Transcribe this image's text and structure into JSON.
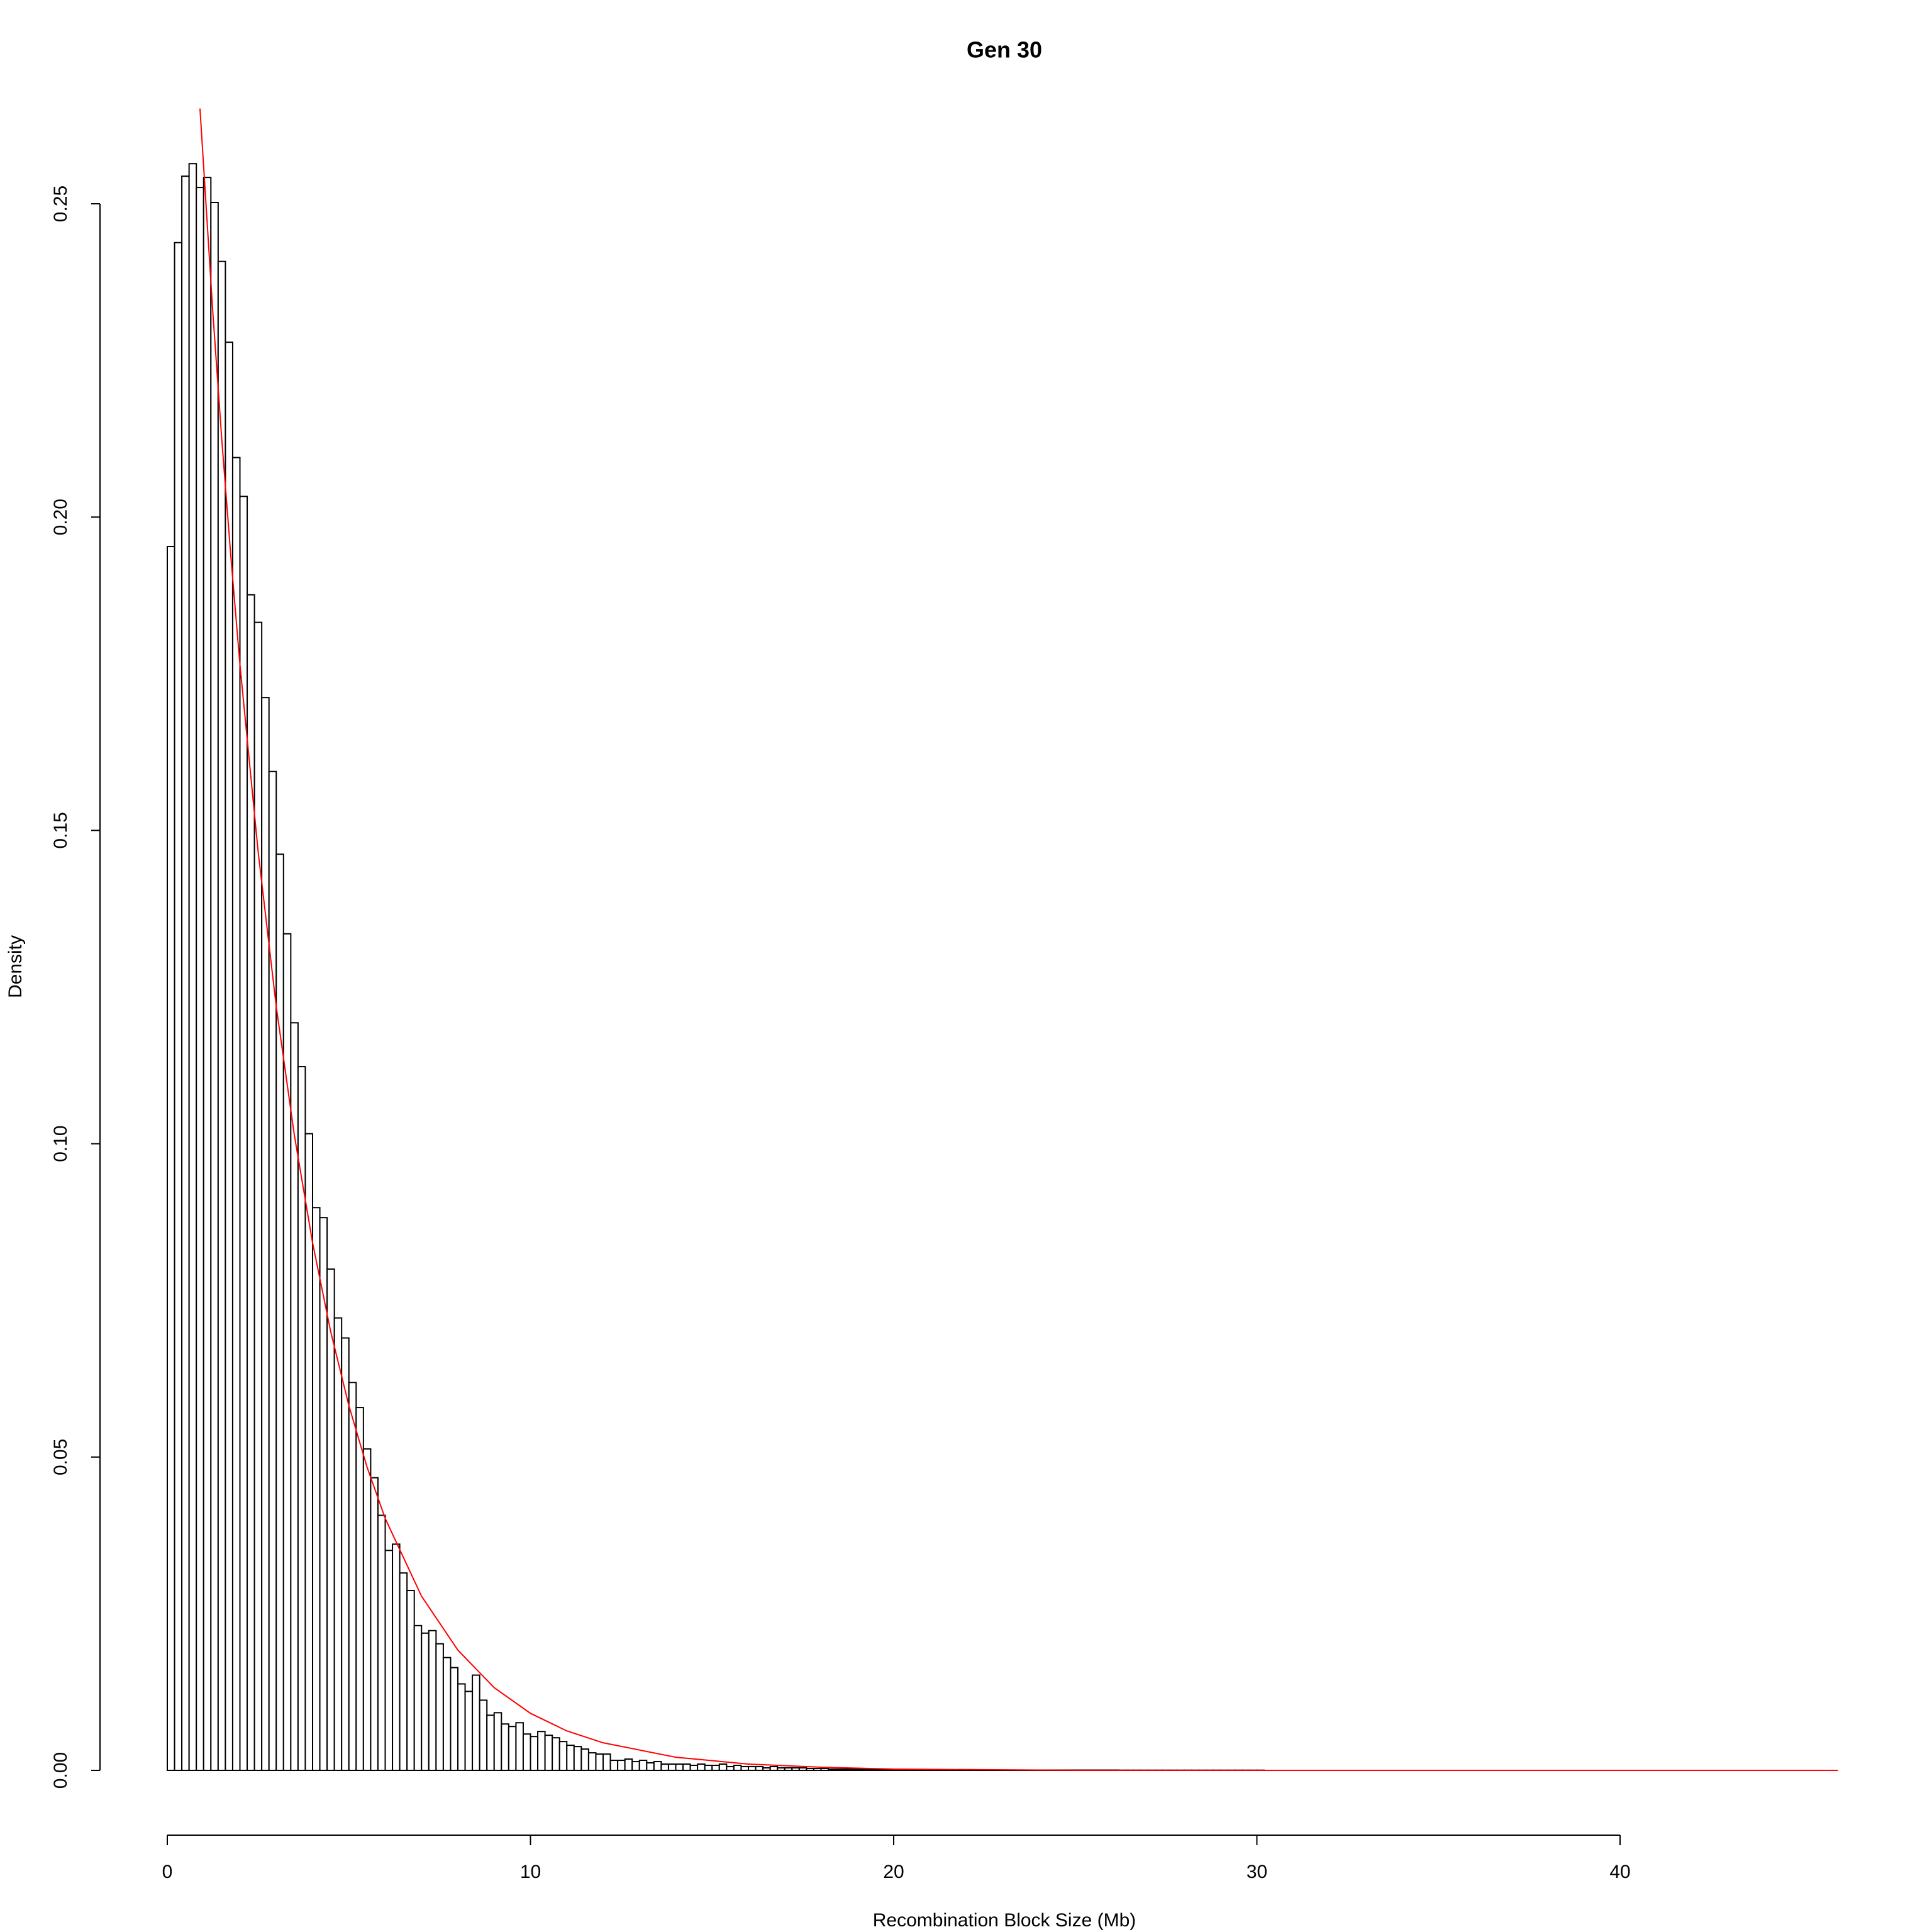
{
  "chart_data": {
    "type": "histogram",
    "title": "Gen 30",
    "xlabel": "Recombination Block Size (Mb)",
    "ylabel": "Density",
    "bins": [
      0,
      0.2,
      0.4,
      0.6,
      0.8,
      1,
      1.2,
      1.4,
      1.6,
      1.8,
      2,
      2.2,
      2.4,
      2.6,
      2.8,
      3,
      3.2,
      3.4,
      3.6,
      3.8,
      4,
      4.2,
      4.4,
      4.6,
      4.8,
      5,
      5.2,
      5.4,
      5.6,
      5.8,
      6,
      6.2,
      6.4,
      6.6,
      6.8,
      7,
      7.2,
      7.4,
      7.6,
      7.8,
      8,
      8.2,
      8.4,
      8.6,
      8.8,
      9,
      9.2,
      9.4,
      9.6,
      9.8,
      10,
      10.2,
      10.4,
      10.6,
      10.8,
      11,
      11.2,
      11.4,
      11.6,
      11.8,
      12,
      12.2,
      12.4,
      12.6,
      12.8,
      13,
      13.2,
      13.4,
      13.6,
      13.8,
      14,
      14.2,
      14.4,
      14.6,
      14.8,
      15,
      15.2,
      15.4,
      15.6,
      15.8,
      16,
      16.2,
      16.4,
      16.6,
      16.8,
      17,
      17.2,
      17.4,
      17.6,
      17.8,
      18,
      18.2,
      18.4,
      18.6,
      18.8,
      19,
      19.2,
      19.4,
      19.6,
      19.8,
      20,
      20.2,
      20.4,
      20.6,
      20.8,
      21,
      21.2,
      21.4,
      21.6,
      21.8,
      22,
      22.2,
      22.4,
      22.6,
      22.8,
      23,
      23.2,
      23.4,
      23.6,
      23.8,
      24,
      24.2,
      24.4,
      24.6,
      24.8,
      25,
      25.2,
      25.4,
      25.6,
      25.8,
      26,
      26.2,
      26.4,
      26.6,
      26.8,
      27,
      27.2,
      27.4,
      27.6,
      27.8,
      28,
      28.2,
      28.4,
      28.6,
      28.8,
      29,
      29.2,
      29.4,
      29.6,
      29.8,
      30,
      30.2,
      30.4,
      30.6,
      30.8,
      31,
      31.2,
      31.4,
      31.6,
      31.8,
      32,
      32.2,
      32.4,
      32.6,
      32.8,
      33,
      33.2,
      33.4,
      33.6,
      33.8,
      34,
      34.2,
      34.4,
      34.6,
      34.8,
      35,
      35.2,
      35.4,
      35.6,
      35.8,
      36,
      36.2,
      36.4,
      36.6,
      36.8,
      37,
      37.2,
      37.4,
      37.6,
      37.8,
      38,
      38.2,
      38.4,
      38.6,
      38.8,
      39,
      39.2,
      39.4,
      39.6,
      39.8,
      40,
      40.2,
      40.4,
      40.6,
      40.8,
      41,
      41.2
    ],
    "values": [
      0.1953,
      0.2438,
      0.2544,
      0.2564,
      0.2526,
      0.2542,
      0.2502,
      0.2408,
      0.2279,
      0.2095,
      0.2033,
      0.1876,
      0.1832,
      0.1712,
      0.1594,
      0.1462,
      0.1335,
      0.1193,
      0.1123,
      0.1016,
      0.0898,
      0.0882,
      0.08,
      0.0722,
      0.069,
      0.0619,
      0.0579,
      0.0513,
      0.0467,
      0.0407,
      0.0351,
      0.0361,
      0.0315,
      0.0287,
      0.0231,
      0.0219,
      0.0223,
      0.0202,
      0.018,
      0.0164,
      0.0138,
      0.0126,
      0.0152,
      0.0112,
      0.0088,
      0.0092,
      0.0074,
      0.007,
      0.0076,
      0.0058,
      0.0054,
      0.0062,
      0.0056,
      0.0052,
      0.0046,
      0.004,
      0.0038,
      0.0034,
      0.0028,
      0.0026,
      0.0026,
      0.0016,
      0.0016,
      0.0018,
      0.0014,
      0.0016,
      0.0012,
      0.0014,
      0.001,
      0.001,
      0.001,
      0.001,
      0.0008,
      0.001,
      0.0008,
      0.0008,
      0.001,
      0.0006,
      0.0008,
      0.0006,
      0.0006,
      0.0006,
      0.0004,
      0.0006,
      0.0004,
      0.0004,
      0.0004,
      0.0004,
      0.0003,
      0.0003,
      0.0003,
      0.0002,
      0.0002,
      0.0002,
      0.0002,
      0.0002,
      0.0002,
      0.0001,
      0.0001,
      0.0001,
      0.0001,
      0.0001,
      0.0001,
      0.0001,
      0.0001,
      0.0001,
      0.0001,
      0.0001,
      0.0001,
      0.0001,
      0.0001,
      5e-05,
      5e-05,
      5e-05,
      5e-05,
      5e-05,
      5e-05,
      5e-05,
      5e-05,
      5e-05,
      5e-05,
      5e-05,
      5e-05,
      5e-05,
      5e-05,
      5e-05,
      5e-05,
      5e-05,
      5e-05,
      5e-05,
      5e-05,
      3e-05,
      3e-05,
      3e-05,
      3e-05,
      3e-05,
      3e-05,
      3e-05,
      3e-05,
      3e-05,
      3e-05,
      3e-05,
      3e-05,
      3e-05,
      3e-05,
      3e-05,
      3e-05,
      3e-05,
      3e-05,
      3e-05,
      3e-05,
      0,
      0,
      0,
      0,
      0,
      0,
      0,
      0,
      0,
      0,
      0,
      0,
      0,
      0,
      0,
      0,
      0,
      0,
      0,
      0,
      0,
      0,
      0,
      0,
      0,
      0,
      0,
      0,
      0,
      0,
      0,
      0,
      0,
      0,
      0,
      0,
      0,
      0,
      0,
      0,
      0,
      0,
      0,
      0,
      0,
      0,
      0,
      0,
      0,
      0,
      0,
      0,
      0,
      0,
      0
    ],
    "color": "#ffffff",
    "edge_color": "#000000",
    "curve_x": [
      0.9,
      1.25,
      1.5,
      1.75,
      2,
      2.5,
      3,
      3.5,
      4,
      4.5,
      5,
      5.5,
      6,
      7,
      8,
      9,
      10,
      11,
      12,
      14,
      16,
      18,
      20,
      25,
      30,
      46
    ],
    "curve_values": [
      0.2652,
      0.233,
      0.2124,
      0.1937,
      0.1765,
      0.1467,
      0.1219,
      0.1013,
      0.0842,
      0.07,
      0.0582,
      0.0484,
      0.0402,
      0.0278,
      0.0192,
      0.0132,
      0.0091,
      0.0063,
      0.0044,
      0.0021,
      0.001,
      0.0005,
      0.0002,
      1e-05,
      0,
      0
    ],
    "curve_color": "#ff0000",
    "xlim": [
      0,
      40
    ],
    "xticks": [
      0,
      10,
      20,
      30,
      40
    ],
    "ylim": [
      0,
      0.25
    ],
    "yticks": [
      {
        "value": 0,
        "label": "0.00"
      },
      0.05,
      {
        "value": 0.1,
        "label": "0.10"
      },
      0.15,
      {
        "value": 0.2,
        "label": "0.20"
      },
      0.25
    ]
  }
}
